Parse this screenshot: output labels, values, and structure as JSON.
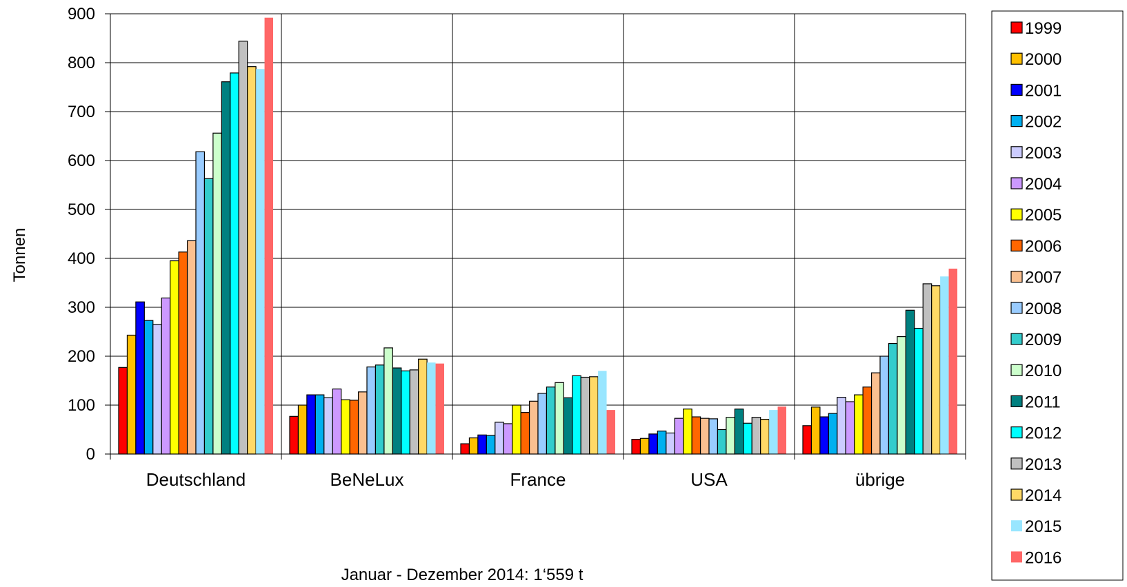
{
  "chart_data": {
    "type": "bar",
    "title": "",
    "xlabel": "",
    "ylabel": "Tonnen",
    "ylim": [
      0,
      900
    ],
    "yticks": [
      0,
      100,
      200,
      300,
      400,
      500,
      600,
      700,
      800,
      900
    ],
    "grid": true,
    "legend_position": "right",
    "categories": [
      "Deutschland",
      "BeNeLux",
      "France",
      "USA",
      "übrige"
    ],
    "footnote": "Januar - Dezember 2014: 1‘559 t",
    "series": [
      {
        "name": "1999",
        "color": "#ff0000",
        "outline": true,
        "values": [
          177,
          77,
          21,
          30,
          58
        ]
      },
      {
        "name": "2000",
        "color": "#ffc000",
        "outline": true,
        "values": [
          243,
          100,
          33,
          32,
          96
        ]
      },
      {
        "name": "2001",
        "color": "#0000ff",
        "outline": true,
        "values": [
          311,
          121,
          39,
          41,
          76
        ]
      },
      {
        "name": "2002",
        "color": "#00b0f0",
        "outline": true,
        "values": [
          273,
          121,
          38,
          47,
          83
        ]
      },
      {
        "name": "2003",
        "color": "#ccccff",
        "outline": true,
        "values": [
          265,
          115,
          65,
          43,
          116
        ]
      },
      {
        "name": "2004",
        "color": "#cc99ff",
        "outline": true,
        "values": [
          319,
          133,
          62,
          73,
          107
        ]
      },
      {
        "name": "2005",
        "color": "#ffff00",
        "outline": true,
        "values": [
          395,
          111,
          100,
          92,
          121
        ]
      },
      {
        "name": "2006",
        "color": "#ff6600",
        "outline": true,
        "values": [
          413,
          110,
          85,
          76,
          137
        ]
      },
      {
        "name": "2007",
        "color": "#fac090",
        "outline": true,
        "values": [
          436,
          127,
          108,
          73,
          166
        ]
      },
      {
        "name": "2008",
        "color": "#99ccff",
        "outline": true,
        "values": [
          618,
          178,
          124,
          72,
          200
        ]
      },
      {
        "name": "2009",
        "color": "#33cccc",
        "outline": true,
        "values": [
          563,
          182,
          137,
          50,
          226
        ]
      },
      {
        "name": "2010",
        "color": "#ccffcc",
        "outline": true,
        "values": [
          656,
          217,
          146,
          75,
          240
        ]
      },
      {
        "name": "2011",
        "color": "#008080",
        "outline": true,
        "values": [
          761,
          176,
          115,
          92,
          294
        ]
      },
      {
        "name": "2012",
        "color": "#00ffff",
        "outline": true,
        "values": [
          779,
          170,
          160,
          63,
          257
        ]
      },
      {
        "name": "2013",
        "color": "#c0c0c0",
        "outline": true,
        "values": [
          844,
          172,
          157,
          75,
          348
        ]
      },
      {
        "name": "2014",
        "color": "#ffd966",
        "outline": true,
        "values": [
          792,
          194,
          158,
          71,
          344
        ]
      },
      {
        "name": "2015",
        "color": "#99e6ff",
        "outline": false,
        "values": [
          787,
          187,
          170,
          90,
          363
        ]
      },
      {
        "name": "2016",
        "color": "#ff6666",
        "outline": false,
        "values": [
          892,
          185,
          90,
          97,
          379
        ]
      }
    ]
  }
}
